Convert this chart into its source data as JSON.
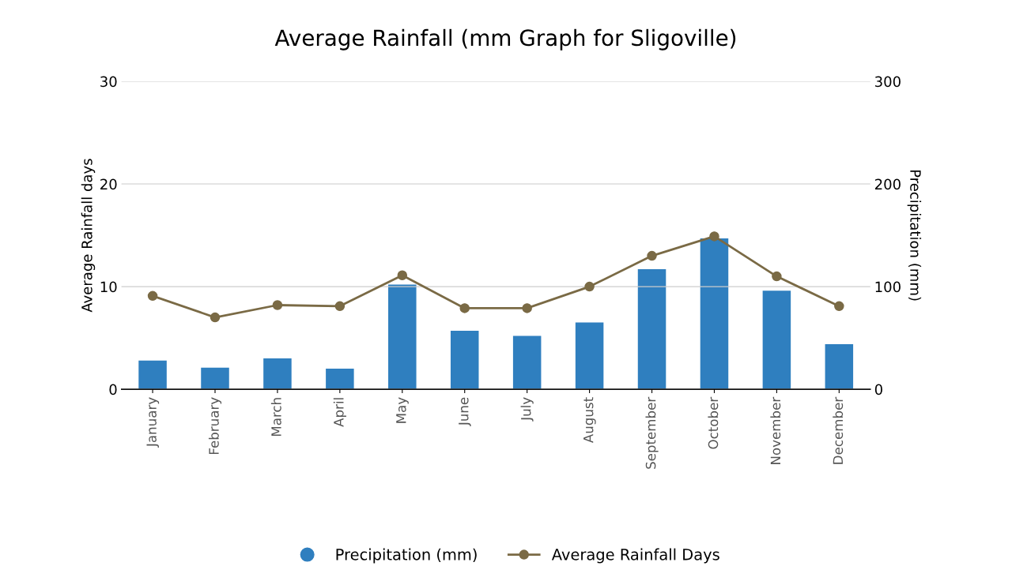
{
  "chart_data": {
    "type": "bar",
    "title": "Average Rainfall (mm Graph for Sligoville)",
    "ylabel": "Average Rainfall days",
    "y2label": "Precipitation (mm)",
    "categories": [
      "January",
      "February",
      "March",
      "April",
      "May",
      "June",
      "July",
      "August",
      "September",
      "October",
      "November",
      "December"
    ],
    "series": [
      {
        "name": "Precipitation (mm)",
        "axis": "y2",
        "color": "#2f7fbf",
        "values": [
          28,
          21,
          30,
          20,
          102,
          57,
          52,
          65,
          117,
          147,
          96,
          44
        ]
      },
      {
        "name": "Average Rainfall Days",
        "type": "line",
        "color": "#7a6a45",
        "marker": "circle",
        "values": [
          9.1,
          7.0,
          8.2,
          8.1,
          11.1,
          7.9,
          7.9,
          10.0,
          13.0,
          14.9,
          11.0,
          8.1
        ]
      }
    ],
    "ylim": [
      0,
      30
    ],
    "yticks": [
      0,
      10,
      20,
      30
    ],
    "y2lim": [
      0,
      300
    ],
    "y2ticks": [
      0,
      100,
      200,
      300
    ],
    "grid": "y",
    "legend": "bottom"
  }
}
